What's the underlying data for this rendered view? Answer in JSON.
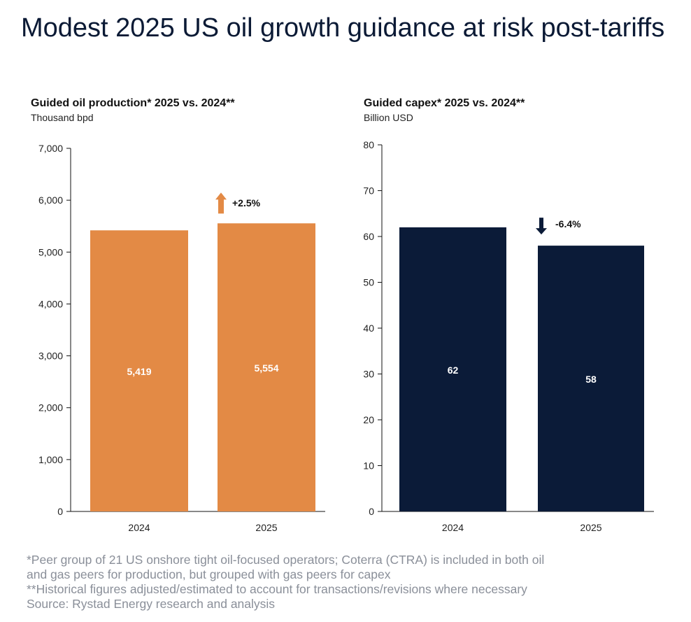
{
  "title": "Modest 2025 US oil growth guidance at risk post-tariffs",
  "chart_data": [
    {
      "type": "bar",
      "title": "Guided oil production* 2025 vs. 2024**",
      "ylabel": "Thousand bpd",
      "categories": [
        "2024",
        "2025"
      ],
      "values": [
        5419,
        5554
      ],
      "data_labels": [
        "5,419",
        "5,554"
      ],
      "ylim": [
        0,
        7000
      ],
      "yticks": [
        "0",
        "1,000",
        "2,000",
        "3,000",
        "4,000",
        "5,000",
        "6,000",
        "7,000"
      ],
      "change_label": "+2.5%",
      "change_direction": "up",
      "color": "#e38a45",
      "grid": false
    },
    {
      "type": "bar",
      "title": "Guided capex* 2025 vs. 2024**",
      "ylabel": "Billion USD",
      "categories": [
        "2024",
        "2025"
      ],
      "values": [
        62,
        58
      ],
      "data_labels": [
        "62",
        "58"
      ],
      "ylim": [
        0,
        80
      ],
      "yticks": [
        "0",
        "10",
        "20",
        "30",
        "40",
        "50",
        "60",
        "70",
        "80"
      ],
      "change_label": "-6.4%",
      "change_direction": "down",
      "color": "#0b1b38",
      "grid": false
    }
  ],
  "footnotes": [
    "*Peer group of 21 US onshore tight oil-focused operators; Coterra (CTRA) is included in both oil",
    "and gas peers for production, but grouped with gas peers for capex",
    "**Historical figures adjusted/estimated to account for transactions/revisions where necessary",
    "Source: Rystad Energy research and analysis"
  ]
}
